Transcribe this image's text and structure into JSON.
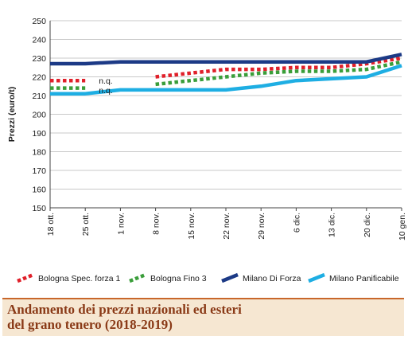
{
  "chart_data": {
    "type": "line",
    "title": "",
    "xlabel": "",
    "ylabel": "Prezzi (euro/t)",
    "ylim": [
      150,
      250
    ],
    "yticks": [
      150,
      160,
      170,
      180,
      190,
      200,
      210,
      220,
      230,
      240,
      250
    ],
    "grid": "horizontal",
    "categories": [
      "18 ott.",
      "25 ott.",
      "1 nov.",
      "8 nov.",
      "15 nov.",
      "22 nov.",
      "29 nov.",
      "6 dic.",
      "13 dic.",
      "20 dic.",
      "10 gen."
    ],
    "legend_position": "bottom",
    "annotations": [
      {
        "text": "n.q.",
        "x": "25 ott.",
        "y": 218
      },
      {
        "text": "n.q.",
        "x": "25 ott.",
        "y": 213
      }
    ],
    "series": [
      {
        "name": "Bologna Spec. forza 1",
        "color": "#e0202a",
        "style": "dotted",
        "values": [
          218,
          218,
          null,
          220,
          222,
          224,
          224,
          225,
          225,
          227,
          230
        ]
      },
      {
        "name": "Bologna Fino 3",
        "color": "#3a9e3a",
        "style": "dotted",
        "values": [
          214,
          214,
          null,
          216,
          218,
          220,
          222,
          223,
          223,
          224,
          228
        ]
      },
      {
        "name": "Milano Di Forza",
        "color": "#1c3a86",
        "style": "solid",
        "values": [
          227,
          227,
          228,
          228,
          228,
          228,
          228,
          228,
          228,
          228,
          232
        ]
      },
      {
        "name": "Milano Panificabile",
        "color": "#1eaee3",
        "style": "solid",
        "values": [
          211,
          211,
          213,
          213,
          213,
          213,
          215,
          218,
          219,
          220,
          226
        ]
      }
    ]
  },
  "caption": {
    "line1": "Andamento dei prezzi nazionali ed esteri",
    "line2": "del grano tenero (2018-2019)"
  }
}
